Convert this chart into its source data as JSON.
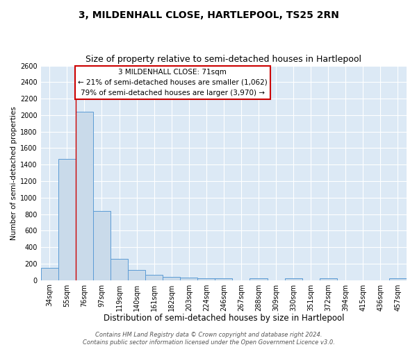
{
  "title": "3, MILDENHALL CLOSE, HARTLEPOOL, TS25 2RN",
  "subtitle": "Size of property relative to semi-detached houses in Hartlepool",
  "xlabel": "Distribution of semi-detached houses by size in Hartlepool",
  "ylabel": "Number of semi-detached properties",
  "categories": [
    "34sqm",
    "55sqm",
    "76sqm",
    "97sqm",
    "119sqm",
    "140sqm",
    "161sqm",
    "182sqm",
    "203sqm",
    "224sqm",
    "246sqm",
    "267sqm",
    "288sqm",
    "309sqm",
    "330sqm",
    "351sqm",
    "372sqm",
    "394sqm",
    "415sqm",
    "436sqm",
    "457sqm"
  ],
  "values": [
    150,
    1470,
    2040,
    835,
    255,
    120,
    65,
    40,
    30,
    20,
    20,
    0,
    25,
    0,
    20,
    0,
    20,
    0,
    0,
    0,
    20
  ],
  "bar_color": "#c9daea",
  "bar_edge_color": "#5b9bd5",
  "vline_color": "#cc0000",
  "vline_x": 1.5,
  "ylim": [
    0,
    2600
  ],
  "yticks": [
    0,
    200,
    400,
    600,
    800,
    1000,
    1200,
    1400,
    1600,
    1800,
    2000,
    2200,
    2400,
    2600
  ],
  "annotation_title": "3 MILDENHALL CLOSE: 71sqm",
  "annotation_line1": "← 21% of semi-detached houses are smaller (1,062)",
  "annotation_line2": "79% of semi-detached houses are larger (3,970) →",
  "annotation_box_facecolor": "#ffffff",
  "annotation_box_edgecolor": "#cc0000",
  "footer1": "Contains HM Land Registry data © Crown copyright and database right 2024.",
  "footer2": "Contains public sector information licensed under the Open Government Licence v3.0.",
  "fig_bg_color": "#ffffff",
  "plot_bg_color": "#dce9f5",
  "grid_color": "#ffffff",
  "title_fontsize": 10,
  "subtitle_fontsize": 9,
  "xlabel_fontsize": 8.5,
  "ylabel_fontsize": 7.5,
  "tick_fontsize": 7,
  "annot_fontsize": 7.5,
  "footer_fontsize": 6
}
